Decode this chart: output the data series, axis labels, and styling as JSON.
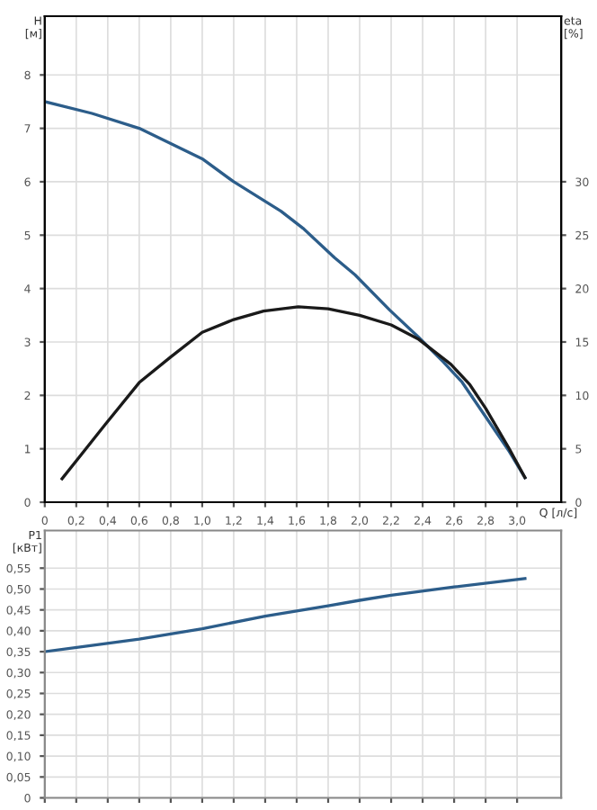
{
  "chart_data": [
    {
      "type": "line",
      "xlabel": "Q [л/с]",
      "ylabel": "H\n[м]",
      "y2label": "eta\n[%]",
      "xlim": [
        0,
        3.28
      ],
      "xticks": [
        0,
        {
          "value": 0.2,
          "label": "0,2"
        },
        {
          "value": 0.4,
          "label": "0,4"
        },
        {
          "value": 0.6,
          "label": "0,6"
        },
        {
          "value": 0.8,
          "label": "0,8"
        },
        {
          "value": 1.0,
          "label": "1,0"
        },
        {
          "value": 1.2,
          "label": "1,2"
        },
        {
          "value": 1.4,
          "label": "1,4"
        },
        {
          "value": 1.6,
          "label": "1,6"
        },
        {
          "value": 1.8,
          "label": "1,8"
        },
        {
          "value": 2.0,
          "label": "2,0"
        },
        {
          "value": 2.2,
          "label": "2,2"
        },
        {
          "value": 2.4,
          "label": "2,4"
        },
        {
          "value": 2.6,
          "label": "2,6"
        },
        {
          "value": 2.8,
          "label": "2,8"
        },
        {
          "value": 3.0,
          "label": "3,0"
        }
      ],
      "ylim": [
        0,
        9.1
      ],
      "yticks": [
        0,
        1,
        2,
        3,
        4,
        5,
        6,
        7,
        8
      ],
      "y2lim": [
        0,
        45.5
      ],
      "y2ticks": [
        0,
        5,
        10,
        15,
        20,
        25,
        30
      ],
      "grid": true,
      "marker": "none",
      "line_style": "solid",
      "series": [
        {
          "color": "#2c5d8a",
          "x": [
            0,
            0.3,
            0.6,
            1.0,
            1.2,
            1.5,
            1.64,
            1.84,
            1.97,
            2.19,
            2.37,
            2.53,
            2.65,
            2.8,
            2.95,
            3.05
          ],
          "values": [
            7.5,
            7.28,
            7.0,
            6.43,
            6.0,
            5.45,
            5.13,
            4.58,
            4.26,
            3.6,
            3.1,
            2.63,
            2.25,
            1.6,
            0.95,
            0.46
          ]
        },
        {
          "axis": "y2",
          "color": "#1a1a1a",
          "x": [
            0.11,
            0.38,
            0.6,
            0.8,
            1.0,
            1.2,
            1.39,
            1.61,
            1.8,
            2.0,
            2.2,
            2.37,
            2.58,
            2.7,
            2.8,
            2.95,
            3.05
          ],
          "values": [
            2.2,
            7.2,
            11.2,
            13.6,
            15.9,
            17.1,
            17.9,
            18.3,
            18.1,
            17.5,
            16.6,
            15.3,
            12.9,
            11.0,
            8.8,
            5.0,
            2.3
          ]
        }
      ]
    },
    {
      "type": "line",
      "ylabel": "P1\n[кВт]",
      "tick_labels": "y",
      "xlim": [
        0,
        3.28
      ],
      "xticks": [
        0,
        0.2,
        0.4,
        0.6,
        0.8,
        1.0,
        1.2,
        1.4,
        1.6,
        1.8,
        2.0,
        2.2,
        2.4,
        2.6,
        2.8,
        3.0
      ],
      "ylim": [
        0,
        0.64
      ],
      "yticks": [
        0,
        {
          "value": 0.05,
          "label": "0,05"
        },
        {
          "value": 0.1,
          "label": "0,10"
        },
        {
          "value": 0.15,
          "label": "0,15"
        },
        {
          "value": 0.2,
          "label": "0,20"
        },
        {
          "value": 0.25,
          "label": "0,25"
        },
        {
          "value": 0.3,
          "label": "0,30"
        },
        {
          "value": 0.35,
          "label": "0,35"
        },
        {
          "value": 0.4,
          "label": "0,40"
        },
        {
          "value": 0.45,
          "label": "0,45"
        },
        {
          "value": 0.5,
          "label": "0,50"
        },
        {
          "value": 0.55,
          "label": "0,55"
        }
      ],
      "grid": true,
      "marker": "none",
      "line_style": "solid",
      "series": [
        {
          "color": "#2c5d8a",
          "x": [
            0,
            0.3,
            0.6,
            1.0,
            1.4,
            1.8,
            2.0,
            2.2,
            2.6,
            3.05
          ],
          "values": [
            0.35,
            0.365,
            0.38,
            0.405,
            0.435,
            0.46,
            0.473,
            0.485,
            0.505,
            0.525
          ]
        }
      ]
    }
  ]
}
